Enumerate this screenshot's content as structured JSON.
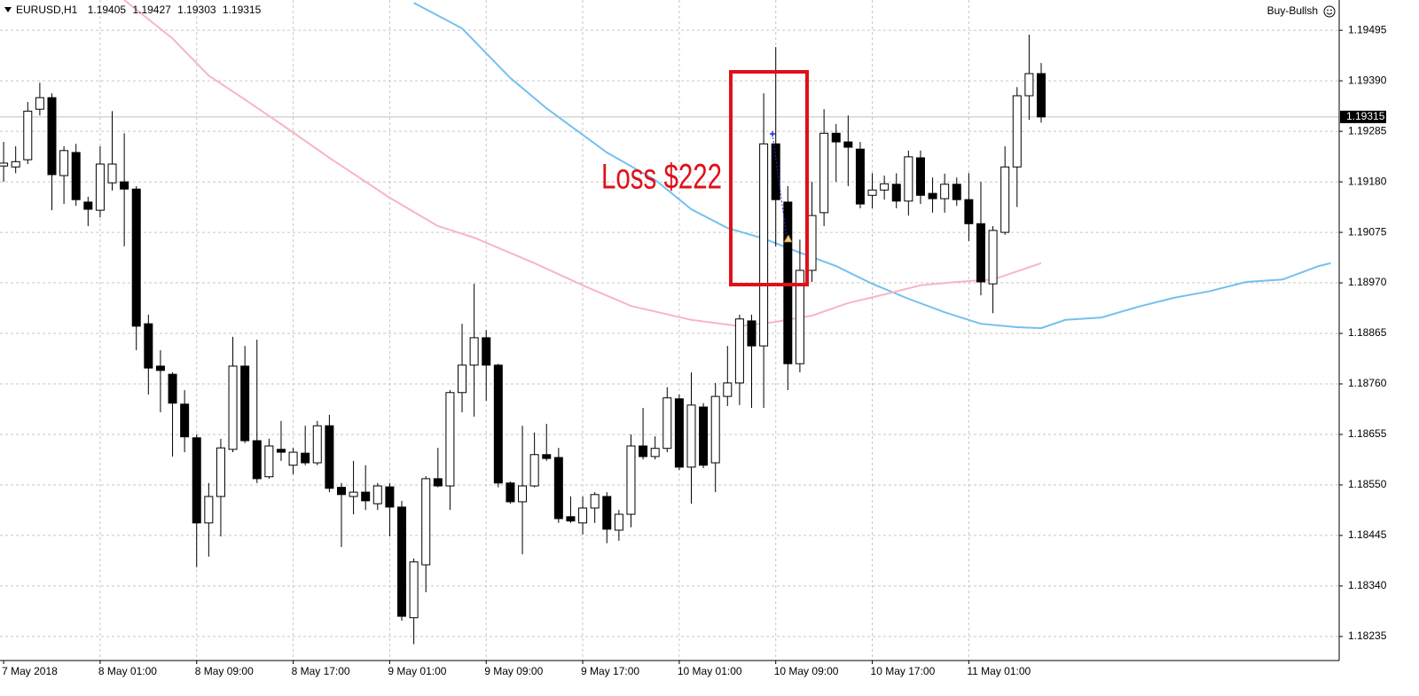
{
  "chart_data": {
    "type": "candlestick",
    "title": "EURUSD,H1",
    "indicator": "Buy-Bullsh",
    "annotation": "Loss $222",
    "categories": [
      "7 May 2018",
      null,
      null,
      null,
      null,
      null,
      null,
      null,
      "8 May 01:00",
      null,
      null,
      null,
      null,
      null,
      null,
      null,
      "8 May 09:00",
      null,
      null,
      null,
      null,
      null,
      null,
      null,
      "8 May 17:00",
      null,
      null,
      null,
      null,
      null,
      null,
      null,
      "9 May 01:00",
      null,
      null,
      null,
      null,
      null,
      null,
      null,
      "9 May 09:00",
      null,
      null,
      null,
      null,
      null,
      null,
      null,
      "9 May 17:00",
      null,
      null,
      null,
      null,
      null,
      null,
      null,
      "10 May 01:00",
      null,
      null,
      null,
      null,
      null,
      null,
      null,
      "10 May 09:00",
      null,
      null,
      null,
      null,
      null,
      null,
      null,
      "10 May 17:00",
      null,
      null,
      null,
      null,
      null,
      null,
      null,
      "11 May 01:00",
      null,
      null,
      null,
      null,
      null,
      null
    ],
    "open": [
      1.19213,
      1.19211,
      1.19226,
      1.19331,
      1.19355,
      1.19193,
      1.19241,
      1.19138,
      1.19121,
      1.19178,
      1.1918,
      1.19165,
      1.18885,
      1.18797,
      1.1878,
      1.18718,
      1.18648,
      1.18471,
      1.18526,
      1.18624,
      1.18797,
      1.18642,
      1.18567,
      1.18624,
      1.18591,
      1.18616,
      1.18596,
      1.18673,
      1.18545,
      1.18526,
      1.18535,
      1.18511,
      1.18546,
      1.18504,
      1.18274,
      1.18384,
      1.18563,
      1.18548,
      1.18742,
      1.18799,
      1.18856,
      1.18799,
      1.18554,
      1.18515,
      1.18548,
      1.18613,
      1.18607,
      1.18484,
      1.18471,
      1.18502,
      1.18526,
      1.18456,
      1.18489,
      1.18631,
      1.18609,
      1.18626,
      1.18729,
      1.18587,
      1.18712,
      1.18596,
      1.18734,
      1.18762,
      1.18891,
      1.18839,
      1.19259,
      1.19138,
      1.18802,
      1.18996,
      1.19116,
      1.19281,
      1.19263,
      1.19248,
      1.19152,
      1.19163,
      1.19175,
      1.1914,
      1.1923,
      1.19156,
      1.19145,
      1.19175,
      1.19143,
      1.19093,
      1.18968,
      1.19075,
      1.19211,
      1.19359,
      1.19405
    ],
    "high": [
      1.19263,
      1.19254,
      1.19346,
      1.19386,
      1.19364,
      1.19254,
      1.19259,
      1.19149,
      1.19254,
      1.19327,
      1.19281,
      1.19171,
      1.18904,
      1.1883,
      1.18784,
      1.18747,
      1.18655,
      1.18554,
      1.18646,
      1.18858,
      1.18839,
      1.18852,
      1.18646,
      1.18683,
      1.18627,
      1.18673,
      1.18683,
      1.18696,
      1.18554,
      1.186,
      1.18591,
      1.18554,
      1.18554,
      1.18517,
      1.18397,
      1.18568,
      1.18627,
      1.18747,
      1.18885,
      1.18968,
      1.18872,
      1.18802,
      1.18557,
      1.18673,
      1.18659,
      1.18677,
      1.18627,
      1.18526,
      1.18526,
      1.18535,
      1.18535,
      1.18498,
      1.18655,
      1.1871,
      1.18651,
      1.18753,
      1.18738,
      1.18784,
      1.1872,
      1.18762,
      1.18839,
      1.18904,
      1.18904,
      1.19364,
      1.1946,
      1.19171,
      1.1906,
      1.1918,
      1.19331,
      1.193,
      1.19318,
      1.19263,
      1.19198,
      1.19193,
      1.19198,
      1.19245,
      1.19245,
      1.19189,
      1.19197,
      1.19189,
      1.19198,
      1.1918,
      1.19088,
      1.19254,
      1.19377,
      1.19486,
      1.19427
    ],
    "low": [
      1.1918,
      1.19198,
      1.19217,
      1.19318,
      1.19121,
      1.19134,
      1.1913,
      1.19088,
      1.19106,
      1.19162,
      1.19046,
      1.1883,
      1.18738,
      1.18701,
      1.18609,
      1.18618,
      1.18379,
      1.18401,
      1.18443,
      1.18618,
      1.18637,
      1.18554,
      1.18563,
      1.186,
      1.18572,
      1.18591,
      1.18591,
      1.18535,
      1.18421,
      1.18489,
      1.18498,
      1.18498,
      1.18443,
      1.18268,
      1.18219,
      1.18327,
      1.18545,
      1.18498,
      1.18701,
      1.18692,
      1.18725,
      1.18545,
      1.18511,
      1.18406,
      1.18545,
      1.186,
      1.18471,
      1.18471,
      1.18447,
      1.18471,
      1.18429,
      1.18434,
      1.18462,
      1.18603,
      1.18603,
      1.18618,
      1.18581,
      1.18511,
      1.18585,
      1.18535,
      1.18714,
      1.18716,
      1.1871,
      1.1871,
      1.19046,
      1.18747,
      1.18784,
      1.18972,
      1.19088,
      1.1918,
      1.19171,
      1.19125,
      1.19125,
      1.19143,
      1.19125,
      1.1911,
      1.19134,
      1.19116,
      1.19116,
      1.1913,
      1.19057,
      1.18944,
      1.18907,
      1.1907,
      1.19128,
      1.19309,
      1.19303
    ],
    "close": [
      1.19219,
      1.19222,
      1.19327,
      1.19355,
      1.19195,
      1.19245,
      1.19143,
      1.19123,
      1.19217,
      1.19217,
      1.19165,
      1.1888,
      1.18793,
      1.18788,
      1.1872,
      1.1865,
      1.18471,
      1.18526,
      1.18627,
      1.18797,
      1.18642,
      1.18563,
      1.18631,
      1.18618,
      1.18618,
      1.18596,
      1.18673,
      1.18543,
      1.1853,
      1.18535,
      1.18517,
      1.18548,
      1.18504,
      1.18277,
      1.1839,
      1.18563,
      1.18548,
      1.18742,
      1.18799,
      1.18856,
      1.18799,
      1.18554,
      1.18515,
      1.18548,
      1.18613,
      1.18605,
      1.1848,
      1.18475,
      1.18502,
      1.1853,
      1.18458,
      1.18489,
      1.18631,
      1.18609,
      1.18626,
      1.18731,
      1.18587,
      1.18716,
      1.18591,
      1.18734,
      1.18762,
      1.18895,
      1.18839,
      1.19259,
      1.19143,
      1.18802,
      1.18996,
      1.1911,
      1.19281,
      1.19263,
      1.19252,
      1.19134,
      1.19163,
      1.19176,
      1.1914,
      1.19232,
      1.19152,
      1.19145,
      1.19175,
      1.19143,
      1.19093,
      1.18972,
      1.19079,
      1.19211,
      1.19359,
      1.19405,
      1.19315
    ],
    "lines": [
      {
        "color": "#74c0ee",
        "x": [
          34,
          38,
          42,
          45,
          50,
          54,
          57,
          60,
          63,
          66,
          69,
          72,
          75,
          78,
          81,
          84,
          86,
          88,
          91,
          94,
          97,
          100,
          103,
          106,
          109,
          110
        ],
        "values": [
          1.19552,
          1.19499,
          1.19396,
          1.19333,
          1.19241,
          1.19184,
          1.19123,
          1.19084,
          1.19062,
          1.19033,
          1.19005,
          1.18968,
          1.18937,
          1.18909,
          1.18885,
          1.18878,
          1.18876,
          1.18893,
          1.18898,
          1.1892,
          1.18939,
          1.18953,
          1.18972,
          1.18977,
          1.19005,
          1.19011
        ]
      },
      {
        "color": "#f7b6c2",
        "x": [
          10,
          14,
          17,
          20,
          23,
          27,
          32,
          36,
          39,
          44,
          48,
          52,
          57,
          61,
          64,
          67,
          70,
          73,
          76,
          79,
          82,
          86
        ],
        "values": [
          1.19558,
          1.19478,
          1.19401,
          1.19351,
          1.193,
          1.1923,
          1.19147,
          1.19088,
          1.19064,
          1.19011,
          1.18965,
          1.18922,
          1.18893,
          1.1888,
          1.18889,
          1.18902,
          1.18928,
          1.18946,
          1.18965,
          1.18972,
          1.18977,
          1.19011
        ]
      }
    ],
    "xlim": [
      -0.3,
      110.7
    ],
    "ylim": [
      1.18185,
      1.19558
    ],
    "yticks": [
      1.19495,
      {
        "value": 1.1939,
        "label": "1.19390"
      },
      1.19285,
      {
        "value": 1.1918,
        "label": "1.19180"
      },
      1.19075,
      {
        "value": 1.1897,
        "label": "1.18970"
      },
      1.18865,
      {
        "value": 1.1876,
        "label": "1.18760"
      },
      1.18655,
      {
        "value": 1.1855,
        "label": "1.18550"
      },
      1.18445,
      {
        "value": 1.1834,
        "label": "1.18340"
      },
      1.18235
    ],
    "grid": true
  }
}
